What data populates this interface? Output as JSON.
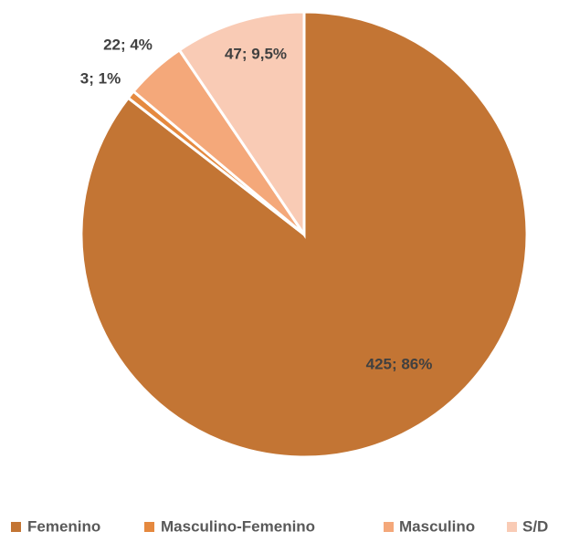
{
  "chart_data": {
    "type": "pie",
    "categories": [
      "Femenino",
      "Masculino-Femenino",
      "Masculino",
      "S/D"
    ],
    "values": [
      425,
      3,
      22,
      47
    ],
    "value_labels": [
      "425; 86%",
      "3; 1%",
      "22; 4%",
      "47; 9,5%"
    ],
    "colors": [
      "#C37534",
      "#E5893F",
      "#F4A87A",
      "#F9CBB5"
    ]
  }
}
